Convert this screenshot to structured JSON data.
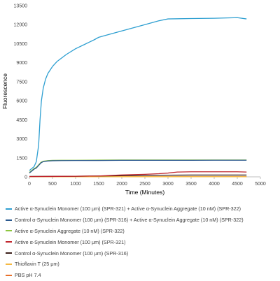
{
  "chart_data": {
    "type": "line",
    "xlabel": "Time (Minutes)",
    "ylabel": "Fluorescence",
    "xlim": [
      0,
      5000
    ],
    "ylim": [
      0,
      13500
    ],
    "xticks": [
      0,
      500,
      1000,
      1500,
      2000,
      2500,
      3000,
      3500,
      4000,
      4500,
      5000
    ],
    "yticks": [
      0,
      1500,
      3000,
      4500,
      6000,
      7500,
      9000,
      10500,
      12000,
      13500
    ],
    "grid": false,
    "legend_position": "bottom",
    "series": [
      {
        "name": "Active α-Synuclein Monomer (100 μm) (SPR-321) + Active α-Synuclein Aggregate (10 nM) (SPR-322)",
        "color": "#2e9fd1",
        "x": [
          0,
          100,
          150,
          200,
          230,
          260,
          300,
          350,
          400,
          500,
          600,
          800,
          1000,
          1200,
          1400,
          1500,
          1600,
          1800,
          2000,
          2500,
          2800,
          3000,
          3500,
          4000,
          4500,
          4700
        ],
        "y": [
          500,
          800,
          1200,
          2500,
          4500,
          6000,
          7000,
          7700,
          8150,
          8700,
          9100,
          9650,
          10100,
          10450,
          10800,
          11000,
          11100,
          11300,
          11500,
          12000,
          12300,
          12450,
          12480,
          12500,
          12550,
          12450
        ]
      },
      {
        "name": "Control α-Synuclein Monomer (100 μm) (SPR-316) + Active α-Synuclein Aggregate (10 nM) (SPR-322)",
        "color": "#2c5a8f",
        "x": [
          0,
          100,
          150,
          200,
          250,
          300,
          400,
          500,
          700,
          1000,
          1500,
          2000,
          2500,
          3000,
          3500,
          4000,
          4500,
          4700
        ],
        "y": [
          300,
          600,
          700,
          900,
          1100,
          1200,
          1250,
          1270,
          1280,
          1290,
          1290,
          1300,
          1300,
          1300,
          1300,
          1310,
          1310,
          1310
        ]
      },
      {
        "name": "Active α-Synuclein Aggregate (10 nM) (SPR-322)",
        "color": "#8dc63f",
        "x": [
          0,
          100,
          150,
          200,
          250,
          300,
          400,
          500,
          700,
          1000,
          1500,
          2000,
          2500,
          3000,
          3500,
          4000,
          4500,
          4700
        ],
        "y": [
          350,
          650,
          750,
          950,
          1150,
          1230,
          1280,
          1300,
          1310,
          1310,
          1320,
          1330,
          1330,
          1330,
          1330,
          1330,
          1330,
          1330
        ]
      },
      {
        "name": "Active α-Synuclein Monomer (100 μm) (SPR-321)",
        "color": "#c0262d",
        "x": [
          0,
          500,
          1000,
          1500,
          1700,
          2000,
          2500,
          2800,
          3000,
          3200,
          3500,
          4000,
          4500,
          4700
        ],
        "y": [
          20,
          30,
          50,
          70,
          100,
          150,
          200,
          250,
          300,
          380,
          400,
          400,
          400,
          380
        ]
      },
      {
        "name": "Control α-Synuclein Monomer (100 μm) (SPR-316)",
        "color": "#3b1f1a",
        "x": [
          0,
          500,
          1000,
          1500,
          2000,
          2500,
          3000,
          3500,
          4000,
          4500,
          4700
        ],
        "y": [
          30,
          40,
          50,
          70,
          90,
          110,
          130,
          140,
          140,
          140,
          140
        ]
      },
      {
        "name": "Thioflavin T (25 μm)",
        "color": "#f5b942",
        "x": [
          0,
          1000,
          2000,
          3000,
          4000,
          4700
        ],
        "y": [
          10,
          10,
          10,
          10,
          10,
          10
        ]
      },
      {
        "name": "PBS pH 7.4",
        "color": "#e8702a",
        "x": [
          0,
          1000,
          2000,
          3000,
          4000,
          4700
        ],
        "y": [
          5,
          5,
          5,
          5,
          5,
          5
        ]
      }
    ]
  }
}
